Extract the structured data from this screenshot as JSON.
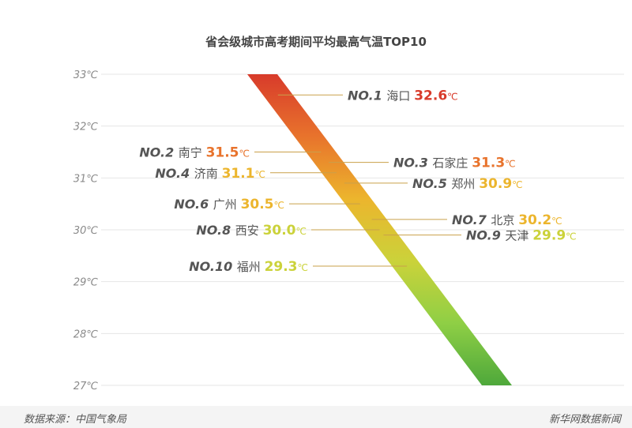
{
  "chart_data": {
    "type": "bar",
    "title": "省会级城市高考期间平均最高气温TOP10",
    "unit": "℃",
    "yticks": [
      "33℃",
      "32℃",
      "31℃",
      "30℃",
      "29℃",
      "28℃",
      "27℃"
    ],
    "ylim": [
      27,
      33
    ],
    "series": [
      {
        "values": [
          {
            "rank": "NO.1",
            "city": "海口",
            "value": 32.6
          },
          {
            "rank": "NO.2",
            "city": "南宁",
            "value": 31.5
          },
          {
            "rank": "NO.3",
            "city": "石家庄",
            "value": 31.3
          },
          {
            "rank": "NO.4",
            "city": "济南",
            "value": 31.1
          },
          {
            "rank": "NO.5",
            "city": "郑州",
            "value": 30.9
          },
          {
            "rank": "NO.6",
            "city": "广州",
            "value": 30.5
          },
          {
            "rank": "NO.7",
            "city": "北京",
            "value": 30.2
          },
          {
            "rank": "NO.8",
            "city": "西安",
            "value": 30.0
          },
          {
            "rank": "NO.9",
            "city": "天津",
            "value": 29.9
          },
          {
            "rank": "NO.10",
            "city": "福州",
            "value": 29.3
          }
        ]
      }
    ],
    "colors": {
      "grid": "#e6e6e6",
      "tick_text": "#8a8a8a",
      "label_text": "#555555",
      "leader": "#c9a04a",
      "gradient": [
        "#d83b2b",
        "#e8732c",
        "#ecb52d",
        "#cbd23a",
        "#8fcf45",
        "#4ea83b"
      ]
    }
  },
  "footer": {
    "source": "数据来源：中国气象局",
    "brand": "新华网数据新闻"
  }
}
